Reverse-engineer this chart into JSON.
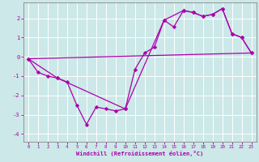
{
  "xlabel": "Windchill (Refroidissement éolien,°C)",
  "background_color": "#cce8e8",
  "grid_color": "#aacccc",
  "line_color": "#aa00aa",
  "xlim": [
    -0.5,
    23.5
  ],
  "ylim": [
    -4.4,
    2.8
  ],
  "yticks": [
    -4,
    -3,
    -2,
    -1,
    0,
    1,
    2
  ],
  "xticks": [
    0,
    1,
    2,
    3,
    4,
    5,
    6,
    7,
    8,
    9,
    10,
    11,
    12,
    13,
    14,
    15,
    16,
    17,
    18,
    19,
    20,
    21,
    22,
    23
  ],
  "line1_x": [
    0,
    1,
    2,
    3,
    4,
    5,
    6,
    7,
    8,
    9,
    10,
    11,
    12,
    13,
    14,
    15,
    16,
    17,
    18,
    19,
    20,
    21,
    22,
    23
  ],
  "line1_y": [
    -0.1,
    -0.8,
    -1.0,
    -1.1,
    -1.3,
    -2.5,
    -3.5,
    -2.6,
    -2.7,
    -2.8,
    -2.7,
    -0.65,
    0.2,
    0.5,
    1.9,
    1.55,
    2.4,
    2.3,
    2.1,
    2.2,
    2.5,
    1.2,
    1.0,
    0.2
  ],
  "line2_x": [
    0,
    3,
    10,
    14,
    16,
    17,
    18,
    19,
    20,
    21,
    22,
    23
  ],
  "line2_y": [
    -0.1,
    -1.1,
    -2.7,
    1.9,
    2.4,
    2.3,
    2.1,
    2.2,
    2.5,
    1.2,
    1.0,
    0.2
  ],
  "line3_x": [
    0,
    23
  ],
  "line3_y": [
    -0.1,
    0.2
  ]
}
